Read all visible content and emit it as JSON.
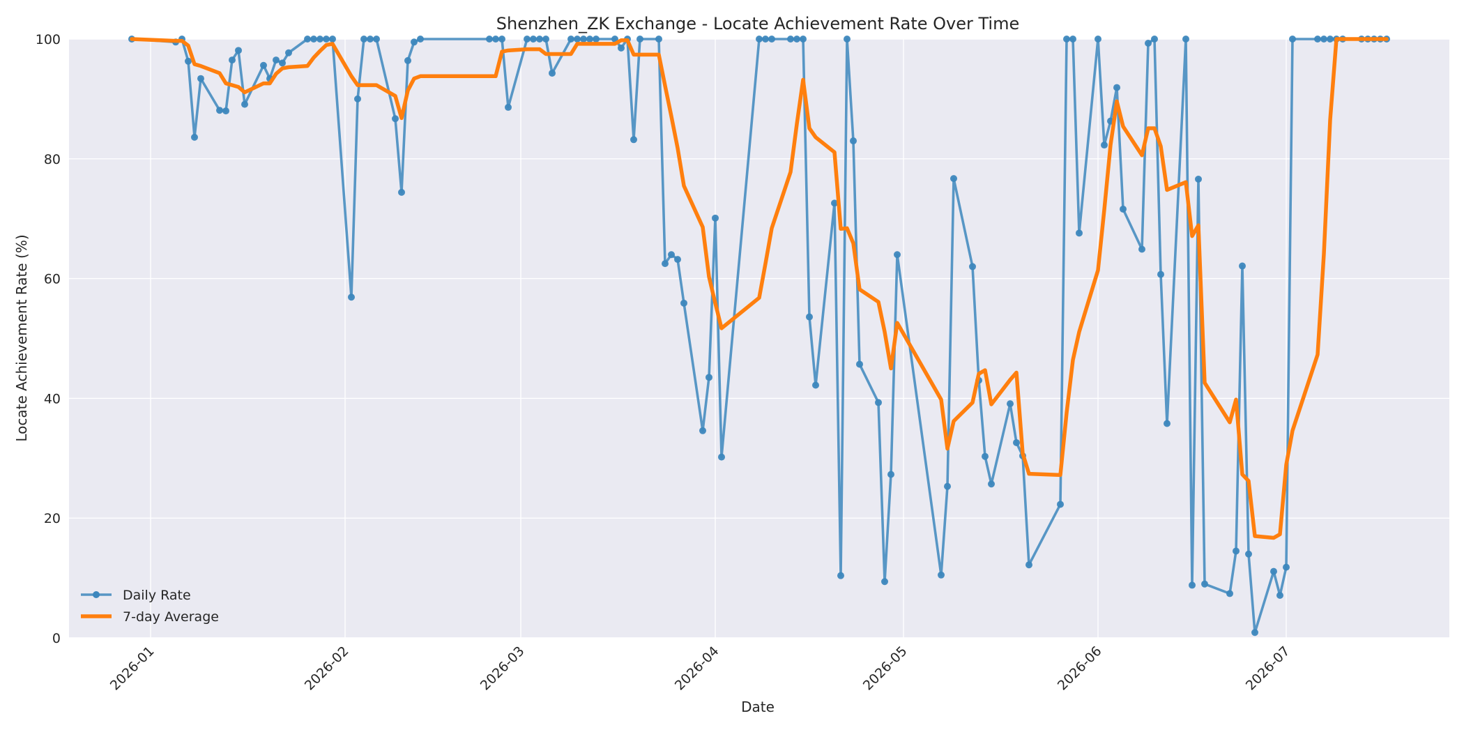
{
  "chart_data": {
    "type": "line",
    "title": "Shenzhen_ZK Exchange - Locate Achievement Rate Over Time",
    "xlabel": "Date",
    "ylabel": "Locate Achievement Rate (%)",
    "xlim": [
      "2025-12-19",
      "2026-07-27"
    ],
    "ylim": [
      0,
      100
    ],
    "x_ticks": [
      "2026-01-01",
      "2026-02-01",
      "2026-03-01",
      "2026-04-01",
      "2026-05-01",
      "2026-06-01",
      "2026-07-01"
    ],
    "x_tick_labels": [
      "2026-01",
      "2026-02",
      "2026-03",
      "2026-04",
      "2026-05",
      "2026-06",
      "2026-07"
    ],
    "y_ticks": [
      0,
      20,
      40,
      60,
      80,
      100
    ],
    "y_tick_labels": [
      "0",
      "20",
      "40",
      "60",
      "80",
      "100"
    ],
    "grid": true,
    "legend_position": "lower-left",
    "series": [
      {
        "name": "Daily Rate",
        "color": "#3d87bd",
        "marker": "circle",
        "x": [
          "2025-12-29",
          "2026-01-05",
          "2026-01-06",
          "2026-01-07",
          "2026-01-08",
          "2026-01-09",
          "2026-01-12",
          "2026-01-13",
          "2026-01-14",
          "2026-01-15",
          "2026-01-16",
          "2026-01-19",
          "2026-01-20",
          "2026-01-21",
          "2026-01-22",
          "2026-01-23",
          "2026-01-26",
          "2026-01-27",
          "2026-01-28",
          "2026-01-29",
          "2026-01-30",
          "2026-02-02",
          "2026-02-03",
          "2026-02-04",
          "2026-02-05",
          "2026-02-06",
          "2026-02-09",
          "2026-02-10",
          "2026-02-11",
          "2026-02-12",
          "2026-02-13",
          "2026-02-24",
          "2026-02-25",
          "2026-02-26",
          "2026-02-27",
          "2026-03-02",
          "2026-03-03",
          "2026-03-04",
          "2026-03-05",
          "2026-03-06",
          "2026-03-09",
          "2026-03-10",
          "2026-03-11",
          "2026-03-12",
          "2026-03-13",
          "2026-03-16",
          "2026-03-17",
          "2026-03-18",
          "2026-03-19",
          "2026-03-20",
          "2026-03-23",
          "2026-03-24",
          "2026-03-25",
          "2026-03-26",
          "2026-03-27",
          "2026-03-30",
          "2026-03-31",
          "2026-04-01",
          "2026-04-02",
          "2026-04-08",
          "2026-04-09",
          "2026-04-10",
          "2026-04-13",
          "2026-04-14",
          "2026-04-15",
          "2026-04-16",
          "2026-04-17",
          "2026-04-20",
          "2026-04-21",
          "2026-04-22",
          "2026-04-23",
          "2026-04-24",
          "2026-04-27",
          "2026-04-28",
          "2026-04-29",
          "2026-04-30",
          "2026-05-07",
          "2026-05-08",
          "2026-05-09",
          "2026-05-12",
          "2026-05-13",
          "2026-05-14",
          "2026-05-15",
          "2026-05-18",
          "2026-05-19",
          "2026-05-20",
          "2026-05-21",
          "2026-05-26",
          "2026-05-27",
          "2026-05-28",
          "2026-05-29",
          "2026-06-01",
          "2026-06-02",
          "2026-06-03",
          "2026-06-04",
          "2026-06-05",
          "2026-06-08",
          "2026-06-09",
          "2026-06-10",
          "2026-06-11",
          "2026-06-12",
          "2026-06-15",
          "2026-06-16",
          "2026-06-17",
          "2026-06-18",
          "2026-06-22",
          "2026-06-23",
          "2026-06-24",
          "2026-06-25",
          "2026-06-26",
          "2026-06-29",
          "2026-06-30",
          "2026-07-01",
          "2026-07-02",
          "2026-07-06",
          "2026-07-07",
          "2026-07-08",
          "2026-07-09",
          "2026-07-10",
          "2026-07-13",
          "2026-07-14",
          "2026-07-15",
          "2026-07-16",
          "2026-07-17"
        ],
        "y": [
          100,
          99.5,
          100,
          96.3,
          83.6,
          93.4,
          88.1,
          88,
          96.5,
          98.1,
          89.1,
          95.6,
          93.4,
          96.5,
          96,
          97.7,
          100,
          100,
          100,
          100,
          100,
          56.9,
          90,
          100,
          100,
          100,
          86.7,
          74.4,
          96.4,
          99.5,
          100,
          100,
          100,
          100,
          88.6,
          100,
          100,
          100,
          100,
          94.3,
          100,
          100,
          100,
          100,
          100,
          100,
          98.5,
          100,
          83.2,
          100,
          100,
          62.5,
          64,
          63.2,
          55.9,
          34.6,
          43.5,
          70.1,
          30.2,
          100,
          100,
          100,
          100,
          100,
          100,
          53.6,
          42.2,
          72.6,
          10.4,
          100,
          83,
          45.7,
          39.3,
          9.4,
          27.3,
          64,
          10.5,
          25.3,
          76.7,
          62,
          43,
          30.3,
          25.7,
          39.1,
          32.6,
          30.4,
          12.2,
          22.3,
          100,
          100,
          67.6,
          100,
          82.3,
          86.3,
          91.9,
          71.6,
          64.9,
          99.3,
          100,
          60.7,
          35.8,
          100,
          8.8,
          76.6,
          9,
          7.4,
          14.5,
          62.1,
          14,
          0.9,
          11.1,
          7.1,
          11.8,
          100,
          100,
          100,
          100,
          100,
          100,
          100,
          100,
          100,
          100,
          100
        ]
      },
      {
        "name": "7-day Average",
        "color": "#ff7f0e",
        "marker": "none",
        "x": [
          "2025-12-29",
          "2026-01-05",
          "2026-01-06",
          "2026-01-07",
          "2026-01-08",
          "2026-01-09",
          "2026-01-12",
          "2026-01-13",
          "2026-01-14",
          "2026-01-15",
          "2026-01-16",
          "2026-01-19",
          "2026-01-20",
          "2026-01-21",
          "2026-01-22",
          "2026-01-23",
          "2026-01-26",
          "2026-01-27",
          "2026-01-28",
          "2026-01-29",
          "2026-01-30",
          "2026-02-02",
          "2026-02-03",
          "2026-02-04",
          "2026-02-05",
          "2026-02-06",
          "2026-02-09",
          "2026-02-10",
          "2026-02-11",
          "2026-02-12",
          "2026-02-13",
          "2026-02-24",
          "2026-02-25",
          "2026-02-26",
          "2026-02-27",
          "2026-03-02",
          "2026-03-03",
          "2026-03-04",
          "2026-03-05",
          "2026-03-06",
          "2026-03-09",
          "2026-03-10",
          "2026-03-11",
          "2026-03-12",
          "2026-03-13",
          "2026-03-16",
          "2026-03-17",
          "2026-03-18",
          "2026-03-19",
          "2026-03-20",
          "2026-03-23",
          "2026-03-24",
          "2026-03-25",
          "2026-03-26",
          "2026-03-27",
          "2026-03-30",
          "2026-03-31",
          "2026-04-01",
          "2026-04-02",
          "2026-04-08",
          "2026-04-09",
          "2026-04-10",
          "2026-04-13",
          "2026-04-14",
          "2026-04-15",
          "2026-04-16",
          "2026-04-17",
          "2026-04-20",
          "2026-04-21",
          "2026-04-22",
          "2026-04-23",
          "2026-04-24",
          "2026-04-27",
          "2026-04-28",
          "2026-04-29",
          "2026-04-30",
          "2026-05-07",
          "2026-05-08",
          "2026-05-09",
          "2026-05-12",
          "2026-05-13",
          "2026-05-14",
          "2026-05-15",
          "2026-05-18",
          "2026-05-19",
          "2026-05-20",
          "2026-05-21",
          "2026-05-26",
          "2026-05-27",
          "2026-05-28",
          "2026-05-29",
          "2026-06-01",
          "2026-06-02",
          "2026-06-03",
          "2026-06-04",
          "2026-06-05",
          "2026-06-08",
          "2026-06-09",
          "2026-06-10",
          "2026-06-11",
          "2026-06-12",
          "2026-06-15",
          "2026-06-16",
          "2026-06-17",
          "2026-06-18",
          "2026-06-22",
          "2026-06-23",
          "2026-06-24",
          "2026-06-25",
          "2026-06-26",
          "2026-06-29",
          "2026-06-30",
          "2026-07-01",
          "2026-07-02",
          "2026-07-06",
          "2026-07-07",
          "2026-07-08",
          "2026-07-09",
          "2026-07-10",
          "2026-07-13",
          "2026-07-14",
          "2026-07-15",
          "2026-07-16",
          "2026-07-17"
        ],
        "y": [
          100,
          99.7,
          99.7,
          98.9,
          95.8,
          95.5,
          94.3,
          92.6,
          92.3,
          92,
          91.1,
          92.6,
          92.6,
          94.2,
          95.1,
          95.3,
          95.5,
          96.9,
          98,
          99,
          99.2,
          93.8,
          92.3,
          92.3,
          92.3,
          92.3,
          90.5,
          86.8,
          91.4,
          93.4,
          93.8,
          93.8,
          93.8,
          97.9,
          98.1,
          98.3,
          98.3,
          98.3,
          97.5,
          97.5,
          97.5,
          99.2,
          99.2,
          99.2,
          99.2,
          99.2,
          99.8,
          99.8,
          97.4,
          97.4,
          97.4,
          92.2,
          87.1,
          81.8,
          75.5,
          68.6,
          60.3,
          55.9,
          51.7,
          56.8,
          62.5,
          68.4,
          77.8,
          85.8,
          93.2,
          85.1,
          83.6,
          81.1,
          68.3,
          68.4,
          65.9,
          58.2,
          56.1,
          51.1,
          45,
          52.6,
          39.8,
          31.6,
          36.2,
          39.3,
          44.1,
          44.7,
          39,
          43.1,
          44.3,
          30.8,
          27.4,
          27.2,
          37.6,
          46.4,
          51.1,
          61.4,
          71.5,
          82.3,
          89.6,
          85.4,
          80.6,
          85.1,
          85.1,
          82.1,
          74.8,
          76.1,
          67.1,
          68.9,
          42.6,
          36,
          39.8,
          27.3,
          26.2,
          17,
          16.7,
          17.3,
          28.9,
          34.6,
          47.3,
          64.1,
          86.5,
          100,
          100,
          100,
          100,
          100,
          100,
          100
        ]
      }
    ]
  }
}
